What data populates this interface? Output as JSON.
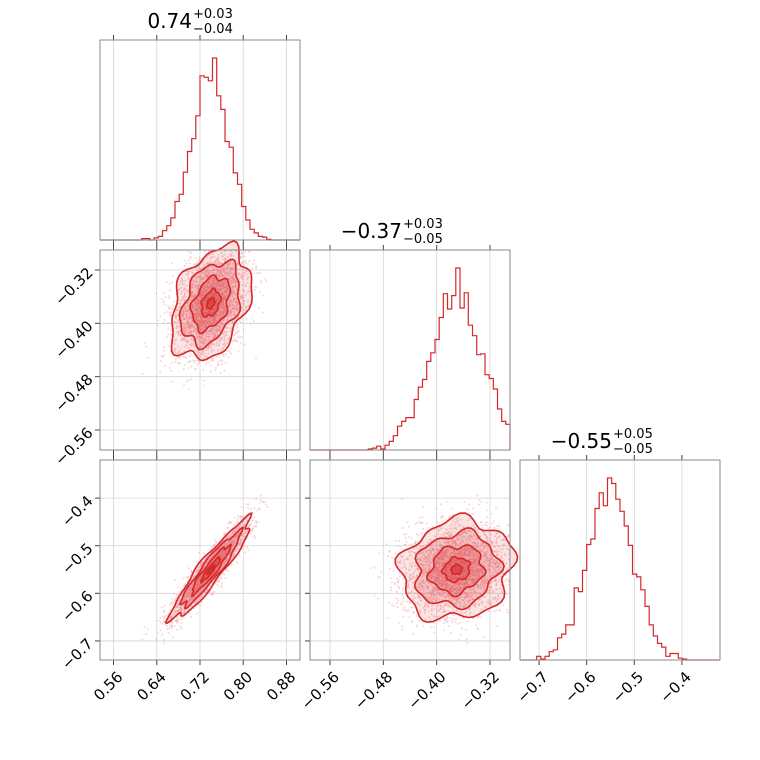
{
  "chart_data": {
    "type": "corner",
    "color": "#d62728",
    "grid": true,
    "parameters": [
      {
        "range": [
          0.535,
          0.905
        ],
        "ticks": [
          0.56,
          0.64,
          0.72,
          0.8,
          0.88
        ],
        "tick_labels": [
          "0.56",
          "0.64",
          "0.72",
          "0.80",
          "0.88"
        ],
        "median": 0.74,
        "sigma": 0.035
      },
      {
        "range": [
          -0.59,
          -0.29
        ],
        "ticks": [
          -0.56,
          -0.48,
          -0.4,
          -0.32
        ],
        "tick_labels": [
          "−0.56",
          "−0.48",
          "−0.40",
          "−0.32"
        ],
        "median": -0.37,
        "sigma": 0.04
      },
      {
        "range": [
          -0.74,
          -0.32
        ],
        "ticks": [
          -0.7,
          -0.6,
          -0.5,
          -0.4
        ],
        "tick_labels": [
          "−0.7",
          "−0.6",
          "−0.5",
          "−0.4"
        ],
        "median": -0.55,
        "sigma": 0.05
      }
    ],
    "titles": [
      {
        "value": "0.74",
        "plus": "+0.03",
        "minus": "−0.04"
      },
      {
        "value": "−0.37",
        "plus": "+0.03",
        "minus": "−0.05"
      },
      {
        "value": "−0.55",
        "plus": "+0.05",
        "minus": "−0.05"
      }
    ],
    "correlations": {
      "1_0": 0.35,
      "2_0": 0.93,
      "2_1": 0.12
    }
  }
}
